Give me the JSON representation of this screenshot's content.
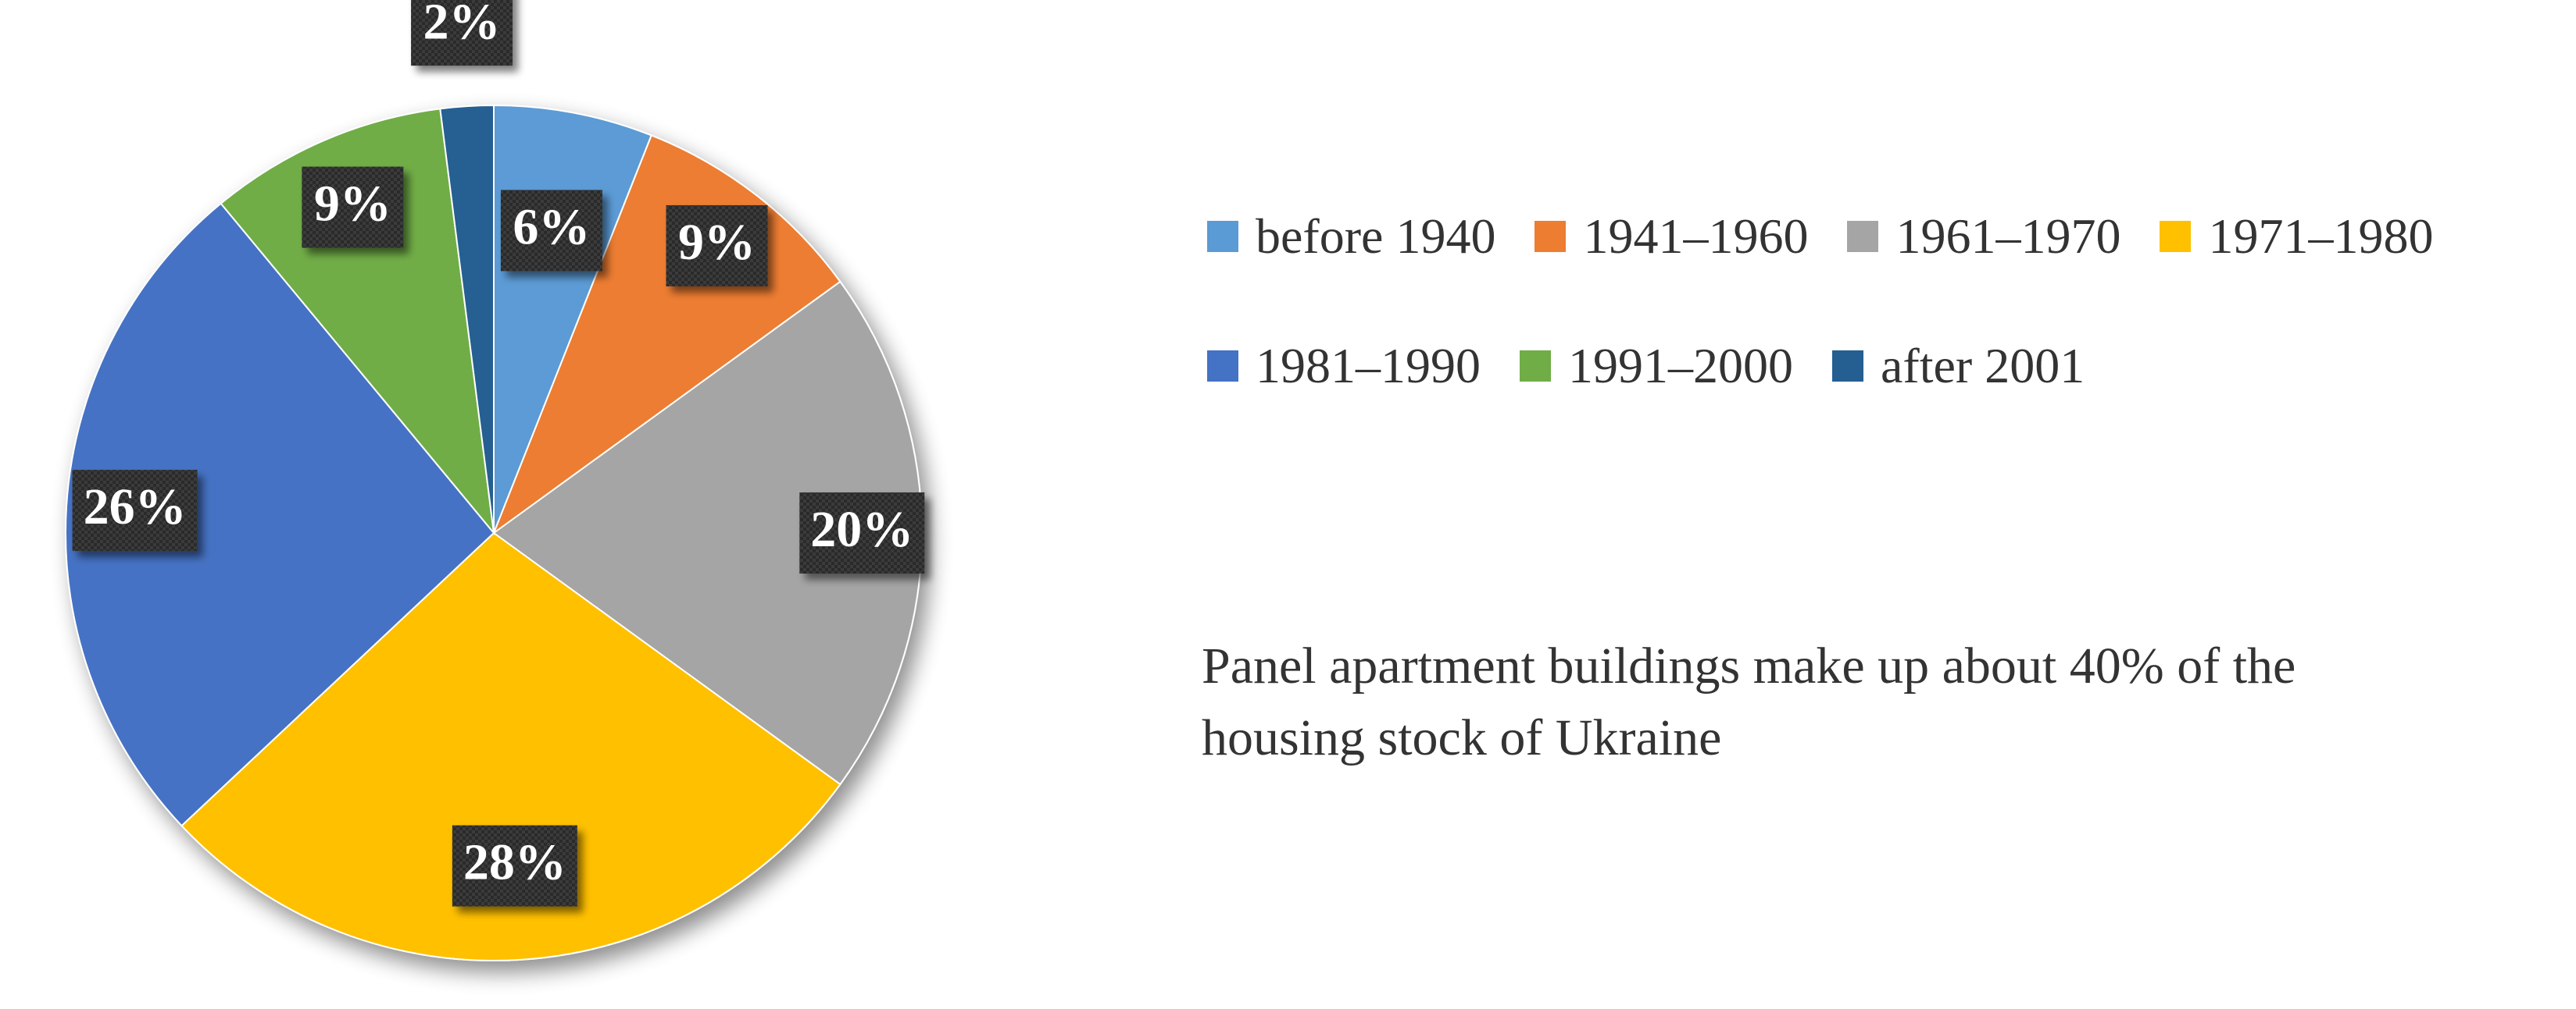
{
  "chart_data": {
    "type": "pie",
    "title": "",
    "categories": [
      "before 1940",
      "1941–1960",
      "1961–1970",
      "1971–1980",
      "1981–1990",
      "1991–2000",
      "after 2001"
    ],
    "values": [
      6,
      9,
      20,
      28,
      26,
      9,
      2
    ],
    "data_labels": [
      "6%",
      "9%",
      "20%",
      "28%",
      "26%",
      "9%",
      "2%"
    ],
    "colors": [
      "#5B9BD5",
      "#ED7D31",
      "#A5A5A5",
      "#FFC000",
      "#4472C4",
      "#70AD47",
      "#255E91"
    ],
    "legend_placement": "right",
    "start_angle": "12 o'clock, clockwise"
  },
  "note": {
    "line1": "Panel apartment buildings make up about 40% of the",
    "line2": "housing stock of Ukraine"
  }
}
